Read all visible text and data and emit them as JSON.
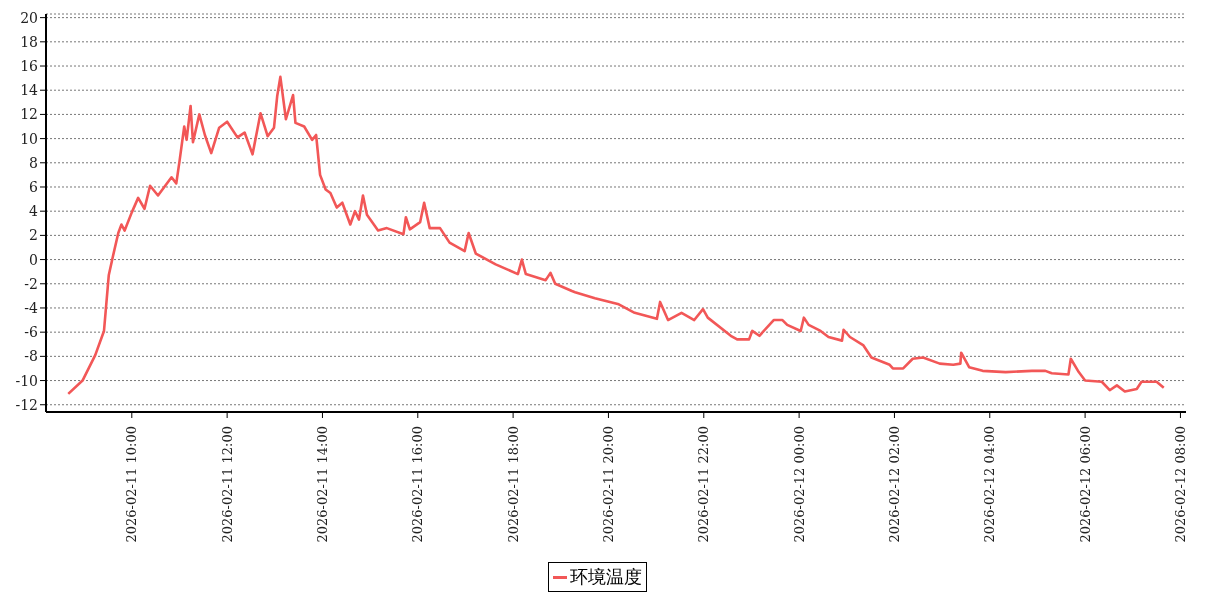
{
  "chart_data": {
    "type": "line",
    "x": [
      "2026-02-11T08:40",
      "2026-02-11T08:58",
      "2026-02-11T09:14",
      "2026-02-11T09:25",
      "2026-02-11T09:31",
      "2026-02-11T09:36",
      "2026-02-11T09:43",
      "2026-02-11T09:47",
      "2026-02-11T09:51",
      "2026-02-11T10:00",
      "2026-02-11T10:08",
      "2026-02-11T10:16",
      "2026-02-11T10:23",
      "2026-02-11T10:33",
      "2026-02-11T10:50",
      "2026-02-11T10:56",
      "2026-02-11T11:00",
      "2026-02-11T11:06",
      "2026-02-11T11:09",
      "2026-02-11T11:14",
      "2026-02-11T11:17",
      "2026-02-11T11:25",
      "2026-02-11T11:32",
      "2026-02-11T11:40",
      "2026-02-11T11:50",
      "2026-02-11T12:00",
      "2026-02-11T12:13",
      "2026-02-11T12:22",
      "2026-02-11T12:32",
      "2026-02-11T12:42",
      "2026-02-11T12:51",
      "2026-02-11T12:59",
      "2026-02-11T13:03",
      "2026-02-11T13:07",
      "2026-02-11T13:14",
      "2026-02-11T13:23",
      "2026-02-11T13:26",
      "2026-02-11T13:37",
      "2026-02-11T13:47",
      "2026-02-11T13:52",
      "2026-02-11T13:57",
      "2026-02-11T14:04",
      "2026-02-11T14:10",
      "2026-02-11T14:18",
      "2026-02-11T14:25",
      "2026-02-11T14:35",
      "2026-02-11T14:41",
      "2026-02-11T14:46",
      "2026-02-11T14:51",
      "2026-02-11T14:56",
      "2026-02-11T15:10",
      "2026-02-11T15:21",
      "2026-02-11T15:42",
      "2026-02-11T15:45",
      "2026-02-11T15:50",
      "2026-02-11T16:03",
      "2026-02-11T16:08",
      "2026-02-11T16:15",
      "2026-02-11T16:28",
      "2026-02-11T16:40",
      "2026-02-11T16:59",
      "2026-02-11T17:04",
      "2026-02-11T17:13",
      "2026-02-11T17:38",
      "2026-02-11T18:06",
      "2026-02-11T18:11",
      "2026-02-11T18:16",
      "2026-02-11T18:41",
      "2026-02-11T18:47",
      "2026-02-11T18:53",
      "2026-02-11T19:14",
      "2026-02-11T19:18",
      "2026-02-11T19:43",
      "2026-02-11T20:13",
      "2026-02-11T20:33",
      "2026-02-11T21:01",
      "2026-02-11T21:05",
      "2026-02-11T21:15",
      "2026-02-11T21:32",
      "2026-02-11T21:48",
      "2026-02-11T21:59",
      "2026-02-11T22:05",
      "2026-02-11T22:34",
      "2026-02-11T22:42",
      "2026-02-11T22:57",
      "2026-02-11T23:01",
      "2026-02-11T23:10",
      "2026-02-11T23:28",
      "2026-02-11T23:39",
      "2026-02-11T23:45",
      "2026-02-12T00:02",
      "2026-02-12T00:06",
      "2026-02-12T00:12",
      "2026-02-12T00:27",
      "2026-02-12T00:37",
      "2026-02-12T00:54",
      "2026-02-12T00:56",
      "2026-02-12T01:04",
      "2026-02-12T01:21",
      "2026-02-12T01:31",
      "2026-02-12T01:54",
      "2026-02-12T01:58",
      "2026-02-12T02:11",
      "2026-02-12T02:23",
      "2026-02-12T02:36",
      "2026-02-12T02:57",
      "2026-02-12T03:14",
      "2026-02-12T03:23",
      "2026-02-12T03:24",
      "2026-02-12T03:34",
      "2026-02-12T03:51",
      "2026-02-12T04:20",
      "2026-02-12T04:53",
      "2026-02-12T05:10",
      "2026-02-12T05:18",
      "2026-02-12T05:39",
      "2026-02-12T05:42",
      "2026-02-12T05:52",
      "2026-02-12T06:00",
      "2026-02-12T06:21",
      "2026-02-12T06:31",
      "2026-02-12T06:40",
      "2026-02-12T06:50",
      "2026-02-12T07:05",
      "2026-02-12T07:11",
      "2026-02-12T07:30",
      "2026-02-12T07:39"
    ],
    "series": [
      {
        "name": "环境温度",
        "color": "#f25757",
        "values": [
          -11.1,
          -10.0,
          -7.9,
          -5.9,
          -1.3,
          0.2,
          2.2,
          2.9,
          2.4,
          3.9,
          5.1,
          4.2,
          6.1,
          5.3,
          6.8,
          6.3,
          8.1,
          11.0,
          9.9,
          12.7,
          9.7,
          12.0,
          10.3,
          8.8,
          10.9,
          11.4,
          10.1,
          10.5,
          8.7,
          12.1,
          10.2,
          10.9,
          13.5,
          15.1,
          11.6,
          13.6,
          11.3,
          11.0,
          9.9,
          10.3,
          7.0,
          5.8,
          5.5,
          4.3,
          4.7,
          2.9,
          4.0,
          3.3,
          5.3,
          3.7,
          2.4,
          2.6,
          2.1,
          3.5,
          2.5,
          3.1,
          4.7,
          2.6,
          2.6,
          1.4,
          0.7,
          2.2,
          0.5,
          -0.4,
          -1.2,
          0.0,
          -1.2,
          -1.7,
          -1.1,
          -2.0,
          -2.6,
          -2.7,
          -3.2,
          -3.7,
          -4.4,
          -4.9,
          -3.5,
          -5.0,
          -4.4,
          -5.0,
          -4.1,
          -4.8,
          -6.3,
          -6.6,
          -6.6,
          -5.9,
          -6.3,
          -5.0,
          -5.0,
          -5.4,
          -5.9,
          -4.8,
          -5.4,
          -5.9,
          -6.4,
          -6.7,
          -5.8,
          -6.4,
          -7.1,
          -8.1,
          -8.7,
          -9.0,
          -9.0,
          -8.2,
          -8.1,
          -8.6,
          -8.7,
          -8.6,
          -7.7,
          -8.9,
          -9.2,
          -9.3,
          -9.2,
          -9.2,
          -9.4,
          -9.5,
          -8.2,
          -9.3,
          -10.0,
          -10.1,
          -10.8,
          -10.4,
          -10.9,
          -10.7,
          -10.1,
          -10.1,
          -10.6
        ]
      }
    ],
    "xlim": [
      "2026-02-11T08:12",
      "2026-02-12T08:07"
    ],
    "xticks": [
      {
        "value": "2026-02-11T10:00",
        "label": "2026-02-11 10:00"
      },
      {
        "value": "2026-02-11T12:00",
        "label": "2026-02-11 12:00"
      },
      {
        "value": "2026-02-11T14:00",
        "label": "2026-02-11 14:00"
      },
      {
        "value": "2026-02-11T16:00",
        "label": "2026-02-11 16:00"
      },
      {
        "value": "2026-02-11T18:00",
        "label": "2026-02-11 18:00"
      },
      {
        "value": "2026-02-11T20:00",
        "label": "2026-02-11 20:00"
      },
      {
        "value": "2026-02-11T22:00",
        "label": "2026-02-11 22:00"
      },
      {
        "value": "2026-02-12T00:00",
        "label": "2026-02-12 00:00"
      },
      {
        "value": "2026-02-12T02:00",
        "label": "2026-02-12 02:00"
      },
      {
        "value": "2026-02-12T04:00",
        "label": "2026-02-12 04:00"
      },
      {
        "value": "2026-02-12T06:00",
        "label": "2026-02-12 06:00"
      },
      {
        "value": "2026-02-12T08:00",
        "label": "2026-02-12 08:00"
      }
    ],
    "ylim": [
      -12.6,
      20.3
    ],
    "yticks": [
      -12,
      -10,
      -8,
      -6,
      -4,
      -2,
      0,
      2,
      4,
      6,
      8,
      10,
      12,
      14,
      16,
      18,
      20
    ],
    "grid": "y",
    "legend": "bottom"
  }
}
